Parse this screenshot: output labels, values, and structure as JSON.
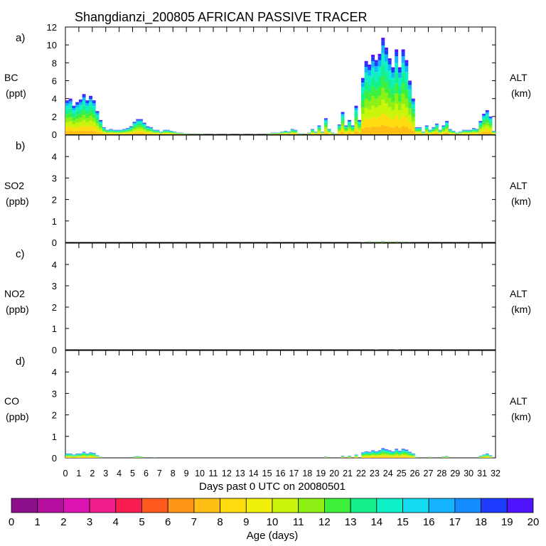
{
  "chart_data": {
    "type": "stacked-bar",
    "title": "Shangdianzi_200805 AFRICAN PASSIVE TRACER",
    "xlabel": "Days past 0 UTC on 20080501",
    "xlim": [
      0,
      32
    ],
    "x_ticks": [
      0,
      1,
      2,
      3,
      4,
      5,
      6,
      7,
      8,
      9,
      10,
      11,
      12,
      13,
      14,
      15,
      16,
      17,
      18,
      19,
      20,
      21,
      22,
      23,
      24,
      25,
      26,
      27,
      28,
      29,
      30,
      31,
      32
    ],
    "time_step_days": 0.25,
    "color_stack_note": "each time-bar is stacked by tracer age: young (yellow/orange) at base, older (green -> cyan -> blue) toward the top",
    "panels": [
      {
        "letter": "a)",
        "species": "BC",
        "units": "(ppt)",
        "right_label": "ALT",
        "right_units": "(km)",
        "ylim": [
          0,
          12
        ],
        "y_ticks": [
          0,
          2,
          4,
          6,
          8,
          10,
          12
        ],
        "segments": [
          [
            0.0,
            3.8
          ],
          [
            0.25,
            4.0
          ],
          [
            0.5,
            3.2
          ],
          [
            0.75,
            3.6
          ],
          [
            1.0,
            3.9
          ],
          [
            1.25,
            4.5
          ],
          [
            1.5,
            3.8
          ],
          [
            1.75,
            4.3
          ],
          [
            2.0,
            3.8
          ],
          [
            2.25,
            2.6
          ],
          [
            2.5,
            1.6
          ],
          [
            2.75,
            0.8
          ],
          [
            3.0,
            0.5
          ],
          [
            3.25,
            0.6
          ],
          [
            3.5,
            0.5
          ],
          [
            3.75,
            0.5
          ],
          [
            4.0,
            0.5
          ],
          [
            4.25,
            0.6
          ],
          [
            4.5,
            0.7
          ],
          [
            4.75,
            0.9
          ],
          [
            5.0,
            1.4
          ],
          [
            5.25,
            1.7
          ],
          [
            5.5,
            1.7
          ],
          [
            5.75,
            1.3
          ],
          [
            6.0,
            0.9
          ],
          [
            6.25,
            0.8
          ],
          [
            6.5,
            0.5
          ],
          [
            6.75,
            0.5
          ],
          [
            7.0,
            0.3
          ],
          [
            7.25,
            0.5
          ],
          [
            7.5,
            0.5
          ],
          [
            7.75,
            0.4
          ],
          [
            8.0,
            0.3
          ],
          [
            8.25,
            0.2
          ],
          [
            8.5,
            0.2
          ],
          [
            8.75,
            0.1
          ],
          [
            9.0,
            0.1
          ],
          [
            9.5,
            0.1
          ],
          [
            10.0,
            0.05
          ],
          [
            11.0,
            0.05
          ],
          [
            12.0,
            0.05
          ],
          [
            13.0,
            0.05
          ],
          [
            14.0,
            0.05
          ],
          [
            15.0,
            0.1
          ],
          [
            15.25,
            0.2
          ],
          [
            15.5,
            0.2
          ],
          [
            15.75,
            0.2
          ],
          [
            16.0,
            0.3
          ],
          [
            16.25,
            0.4
          ],
          [
            16.5,
            0.3
          ],
          [
            16.75,
            0.6
          ],
          [
            17.0,
            0.5
          ],
          [
            17.25,
            0.1
          ],
          [
            17.5,
            0.1
          ],
          [
            18.0,
            0.2
          ],
          [
            18.25,
            0.6
          ],
          [
            18.5,
            0.3
          ],
          [
            18.75,
            1.0
          ],
          [
            19.0,
            0.3
          ],
          [
            19.25,
            1.8
          ],
          [
            19.5,
            0.6
          ],
          [
            19.75,
            0.2
          ],
          [
            20.0,
            0.1
          ],
          [
            20.25,
            1.1
          ],
          [
            20.5,
            2.5
          ],
          [
            20.75,
            1.0
          ],
          [
            21.0,
            1.6
          ],
          [
            21.25,
            1.0
          ],
          [
            21.5,
            3.2
          ],
          [
            21.75,
            1.6
          ],
          [
            22.0,
            6.3
          ],
          [
            22.25,
            8.2
          ],
          [
            22.5,
            7.8
          ],
          [
            22.75,
            8.9
          ],
          [
            23.0,
            8.3
          ],
          [
            23.25,
            9.0
          ],
          [
            23.5,
            10.8
          ],
          [
            23.75,
            9.7
          ],
          [
            24.0,
            8.5
          ],
          [
            24.25,
            7.5
          ],
          [
            24.5,
            9.5
          ],
          [
            24.75,
            7.5
          ],
          [
            25.0,
            9.5
          ],
          [
            25.25,
            8.3
          ],
          [
            25.5,
            6.0
          ],
          [
            25.75,
            4.0
          ],
          [
            26.0,
            0.8
          ],
          [
            26.25,
            0.8
          ],
          [
            26.5,
            0.3
          ],
          [
            26.75,
            1.0
          ],
          [
            27.0,
            0.5
          ],
          [
            27.25,
            0.8
          ],
          [
            27.5,
            1.2
          ],
          [
            27.75,
            0.5
          ],
          [
            28.0,
            1.0
          ],
          [
            28.25,
            1.5
          ],
          [
            28.5,
            0.6
          ],
          [
            28.75,
            0.4
          ],
          [
            29.0,
            0.2
          ],
          [
            29.25,
            0.3
          ],
          [
            29.5,
            0.5
          ],
          [
            29.75,
            0.5
          ],
          [
            30.0,
            0.5
          ],
          [
            30.25,
            0.7
          ],
          [
            30.5,
            0.6
          ],
          [
            30.75,
            1.5
          ],
          [
            31.0,
            2.3
          ],
          [
            31.25,
            2.7
          ],
          [
            31.5,
            2.0
          ],
          [
            31.75,
            0.4
          ]
        ]
      },
      {
        "letter": "b)",
        "species": "SO2",
        "units": "(ppb)",
        "right_label": "ALT",
        "right_units": "(km)",
        "ylim": [
          0,
          5
        ],
        "y_ticks": [
          0,
          1,
          2,
          3,
          4
        ],
        "segments": [
          [
            22.0,
            0.02
          ],
          [
            22.5,
            0.05
          ],
          [
            23.0,
            0.04
          ],
          [
            23.5,
            0.06
          ],
          [
            24.0,
            0.04
          ],
          [
            24.5,
            0.05
          ],
          [
            25.0,
            0.04
          ],
          [
            25.5,
            0.03
          ]
        ]
      },
      {
        "letter": "c)",
        "species": "NO2",
        "units": "(ppb)",
        "right_label": "ALT",
        "right_units": "(km)",
        "ylim": [
          0,
          5
        ],
        "y_ticks": [
          0,
          1,
          2,
          3,
          4
        ],
        "segments": [
          [
            23.0,
            0.02
          ],
          [
            24.5,
            0.02
          ]
        ]
      },
      {
        "letter": "d)",
        "species": "CO",
        "units": "(ppb)",
        "right_label": "ALT",
        "right_units": "(km)",
        "ylim": [
          0,
          5
        ],
        "y_ticks": [
          0,
          1,
          2,
          3,
          4
        ],
        "segments": [
          [
            0.0,
            0.2
          ],
          [
            0.25,
            0.2
          ],
          [
            0.5,
            0.15
          ],
          [
            0.75,
            0.2
          ],
          [
            1.0,
            0.2
          ],
          [
            1.25,
            0.28
          ],
          [
            1.5,
            0.2
          ],
          [
            1.75,
            0.25
          ],
          [
            2.0,
            0.22
          ],
          [
            2.25,
            0.12
          ],
          [
            2.5,
            0.05
          ],
          [
            5.0,
            0.06
          ],
          [
            5.25,
            0.08
          ],
          [
            5.5,
            0.06
          ],
          [
            6.5,
            0.03
          ],
          [
            19.25,
            0.06
          ],
          [
            20.5,
            0.1
          ],
          [
            21.0,
            0.1
          ],
          [
            21.5,
            0.15
          ],
          [
            22.0,
            0.25
          ],
          [
            22.25,
            0.3
          ],
          [
            22.5,
            0.28
          ],
          [
            22.75,
            0.35
          ],
          [
            23.0,
            0.3
          ],
          [
            23.25,
            0.35
          ],
          [
            23.5,
            0.45
          ],
          [
            23.75,
            0.4
          ],
          [
            24.0,
            0.35
          ],
          [
            24.25,
            0.3
          ],
          [
            24.5,
            0.42
          ],
          [
            24.75,
            0.32
          ],
          [
            25.0,
            0.42
          ],
          [
            25.25,
            0.38
          ],
          [
            25.5,
            0.28
          ],
          [
            25.75,
            0.2
          ],
          [
            26.0,
            0.04
          ],
          [
            27.0,
            0.05
          ],
          [
            28.0,
            0.06
          ],
          [
            28.25,
            0.08
          ],
          [
            30.75,
            0.1
          ],
          [
            31.0,
            0.15
          ],
          [
            31.25,
            0.2
          ],
          [
            31.5,
            0.12
          ]
        ]
      }
    ],
    "colorbar": {
      "label": "Age (days)",
      "ticks": [
        0,
        1,
        2,
        3,
        4,
        5,
        6,
        7,
        8,
        9,
        10,
        11,
        12,
        13,
        14,
        15,
        16,
        17,
        18,
        19,
        20
      ],
      "colors": [
        "#8c0f8c",
        "#b40fa0",
        "#dc14b4",
        "#f01e8c",
        "#fa1e50",
        "#ff5a1e",
        "#ff9619",
        "#ffbe14",
        "#ffdc0f",
        "#f0f00a",
        "#c8f50a",
        "#8cf014",
        "#3cf03c",
        "#14f08c",
        "#0ff0c8",
        "#14dcf0",
        "#14b4ff",
        "#148cff",
        "#1e3cff",
        "#5014ff"
      ]
    }
  }
}
